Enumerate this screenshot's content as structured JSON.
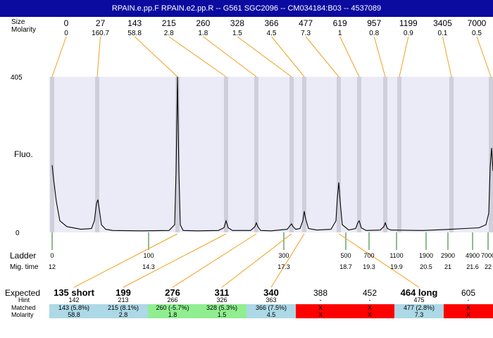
{
  "title": "RPAIN.e.pp.F  RPAIN.e2.pp.R -- G561 SGC2096 -- CM034184:B03 -- 4537089",
  "colors": {
    "titlebar": "#0b0ba0",
    "plot_background": "#ebebf8",
    "ladder_band": "#cfcfdc",
    "peak_line": "#f0a020",
    "ladder_tick": "#1a7a1a",
    "match_blue": "#add8e6",
    "match_green": "#90ee90",
    "no_match_red": "#ff0000"
  },
  "chart_data": {
    "type": "line",
    "ylabel": "Fluo.",
    "ylim": [
      0,
      405
    ],
    "y_ticks": [
      "405",
      "0"
    ],
    "peak_table": {
      "size_label": "Size",
      "molarity_label": "Molarity",
      "sizes": [
        "0",
        "27",
        "143",
        "215",
        "260",
        "328",
        "366",
        "477",
        "619",
        "957",
        "1199",
        "3405",
        "7000"
      ],
      "molarity": [
        "0",
        "160.7",
        "58.8",
        "2.8",
        "1.8",
        "1.5",
        "4.5",
        "7.3",
        "1",
        "0.8",
        "0.9",
        "0.1",
        "0.5"
      ],
      "peak_x": [
        74,
        138,
        252,
        321,
        364,
        414,
        432,
        481,
        510,
        547,
        567,
        641,
        697
      ]
    },
    "ladder": {
      "label": "Ladder",
      "mig_label": "Mig. time",
      "sizes": [
        "0",
        "100",
        "300",
        "500",
        "700",
        "1100",
        "1900",
        "2900",
        "4900",
        "7000"
      ],
      "mig_times": [
        "12",
        "14.3",
        "17.3",
        "18.7",
        "19.3",
        "19.9",
        "20.5",
        "21",
        "21.6",
        "22"
      ],
      "x": [
        74,
        211,
        403,
        491,
        524,
        563,
        605,
        636,
        671,
        693
      ]
    },
    "trace": {
      "x": [
        74,
        76,
        80,
        85,
        95,
        115,
        130,
        134,
        137,
        139,
        141,
        144,
        150,
        160,
        200,
        240,
        248,
        250,
        252,
        254,
        256,
        260,
        280,
        310,
        318,
        321,
        324,
        330,
        356,
        362,
        364,
        366,
        370,
        385,
        408,
        412,
        414,
        416,
        420,
        426,
        430,
        432,
        434,
        438,
        450,
        470,
        477,
        479,
        481,
        483,
        486,
        495,
        505,
        508,
        510,
        513,
        520,
        540,
        545,
        547,
        550,
        555,
        600,
        640,
        660,
        680,
        690,
        694,
        696,
        698,
        700
      ],
      "y": [
        175,
        140,
        80,
        30,
        15,
        8,
        10,
        30,
        75,
        85,
        60,
        20,
        8,
        5,
        4,
        5,
        20,
        160,
        405,
        160,
        20,
        5,
        4,
        5,
        12,
        30,
        12,
        5,
        5,
        15,
        25,
        15,
        5,
        4,
        8,
        18,
        22,
        15,
        8,
        10,
        30,
        55,
        35,
        10,
        6,
        8,
        30,
        90,
        130,
        80,
        20,
        6,
        10,
        25,
        30,
        12,
        5,
        6,
        15,
        25,
        10,
        6,
        5,
        8,
        10,
        12,
        20,
        50,
        170,
        220,
        160
      ]
    },
    "expected": {
      "label": "Expected",
      "hint_label": "Hint",
      "matched_label": "Matched",
      "molarity_label": "Molarity",
      "columns": [
        {
          "expected": "135 short",
          "bold": true,
          "hint": "142",
          "matched": "143 (5.8%)",
          "molarity": "58.8",
          "status": "blue",
          "peak_index": 2
        },
        {
          "expected": "199",
          "bold": true,
          "hint": "213",
          "matched": "215 (8.1%)",
          "molarity": "2.8",
          "status": "blue",
          "peak_index": 3
        },
        {
          "expected": "276",
          "bold": true,
          "hint": "266",
          "matched": "260 (-5.7%)",
          "molarity": "1.8",
          "status": "green",
          "peak_index": 4
        },
        {
          "expected": "311",
          "bold": true,
          "hint": "326",
          "matched": "328 (5.3%)",
          "molarity": "1.5",
          "status": "green",
          "peak_index": 5
        },
        {
          "expected": "340",
          "bold": true,
          "hint": "363",
          "matched": "366 (7.5%)",
          "molarity": "4.5",
          "status": "blue",
          "peak_index": 6
        },
        {
          "expected": "388",
          "bold": false,
          "hint": "-",
          "matched": "X",
          "molarity": "X",
          "status": "red",
          "peak_index": null
        },
        {
          "expected": "452",
          "bold": false,
          "hint": "-",
          "matched": "X",
          "molarity": "X",
          "status": "red",
          "peak_index": null
        },
        {
          "expected": "464 long",
          "bold": true,
          "hint": "475",
          "matched": "477 (2.8%)",
          "molarity": "7.3",
          "status": "blue",
          "peak_index": 7
        },
        {
          "expected": "605",
          "bold": false,
          "hint": "-",
          "matched": "X",
          "molarity": "X",
          "status": "red",
          "peak_index": null
        }
      ]
    }
  }
}
